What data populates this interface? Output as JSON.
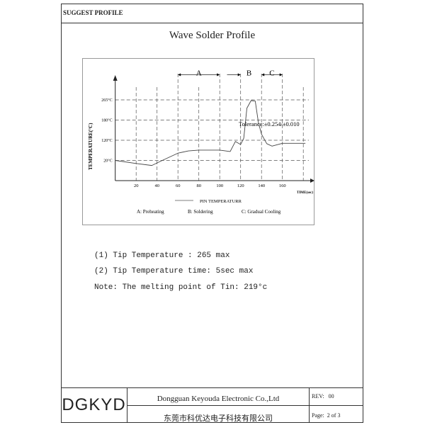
{
  "header": {
    "title": "SUGGEST PROFILE"
  },
  "document_title": "Wave Solder Profile",
  "chart_data": {
    "type": "line",
    "xlabel": "TIME(sec)",
    "ylabel": "TEMPERATURE(°C)",
    "x_ticks": [
      20,
      40,
      60,
      80,
      100,
      120,
      140,
      160
    ],
    "x_gridlines": [
      20,
      40,
      60,
      80,
      100,
      120,
      140,
      160,
      180
    ],
    "y_ticks": [
      "20°C",
      "120°C",
      "180°C",
      "265°C"
    ],
    "y_tick_values": [
      20,
      120,
      180,
      265
    ],
    "grid": true,
    "series": [
      {
        "name": "PIN TEMPERATURR",
        "x": [
          0,
          20,
          35,
          45,
          60,
          70,
          80,
          100,
          110,
          115,
          120,
          123,
          126,
          130,
          134,
          137,
          140,
          145,
          150,
          160,
          182
        ],
        "y": [
          20,
          17,
          15,
          20,
          56,
          67,
          71,
          71,
          64,
          114,
          99,
          126,
          230,
          262,
          260,
          173,
          138,
          103,
          91,
          105,
          105
        ]
      }
    ],
    "phases": [
      {
        "label": "A",
        "start": 60,
        "end": 100
      },
      {
        "label": "B",
        "start": 107,
        "end": 120
      },
      {
        "label": "C",
        "start": 140,
        "end": 160
      }
    ],
    "annotation": "Tolerance:±0.254/±0.010",
    "legend_line": "PIN TEMPERATURR",
    "phase_legend": [
      "A: Preheating",
      "B: Soldering",
      "C: Gradual Cooling"
    ]
  },
  "notes": [
    "(1) Tip Temperature : 265 max",
    "(2) Tip Temperature time: 5sec max",
    "Note: The melting point of Tin: 219°c"
  ],
  "footer": {
    "logo": "DGKYD",
    "company_en": "Dongguan Keyouda Electronic Co.,Ltd",
    "company_cn": "东莞市科优达电子科技有限公司",
    "rev": "REV:   00",
    "page": "Page:  2 of 3"
  }
}
